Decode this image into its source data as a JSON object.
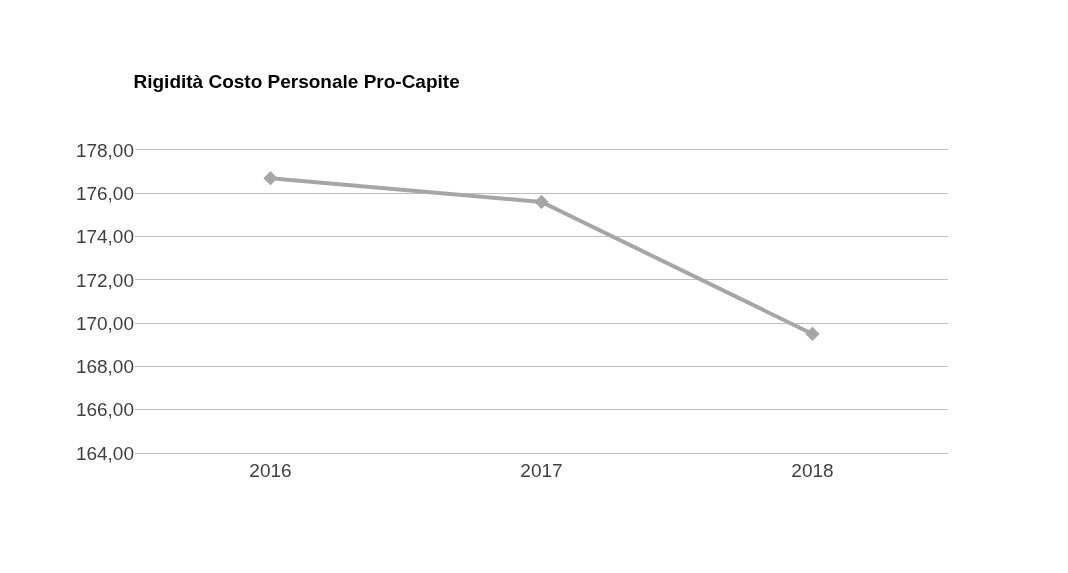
{
  "chart_data": {
    "type": "line",
    "title": "Rigidità Costo Personale Pro-Capite",
    "categories": [
      "2016",
      "2017",
      "2018"
    ],
    "series": [
      {
        "color": "#a6a6a6",
        "values": [
          176.7,
          175.6,
          169.5
        ]
      }
    ],
    "ylim": [
      164,
      178
    ],
    "yticks": [
      {
        "value": 164,
        "label": "164,00"
      },
      {
        "value": 166,
        "label": "166,00"
      },
      {
        "value": 168,
        "label": "168,00"
      },
      {
        "value": 170,
        "label": "170,00"
      },
      {
        "value": 172,
        "label": "172,00"
      },
      {
        "value": 174,
        "label": "174,00"
      },
      {
        "value": 176,
        "label": "176,00"
      },
      {
        "value": 178,
        "label": "178,00"
      }
    ],
    "grid": "y",
    "marker": "diamond",
    "line_style": "solid"
  }
}
